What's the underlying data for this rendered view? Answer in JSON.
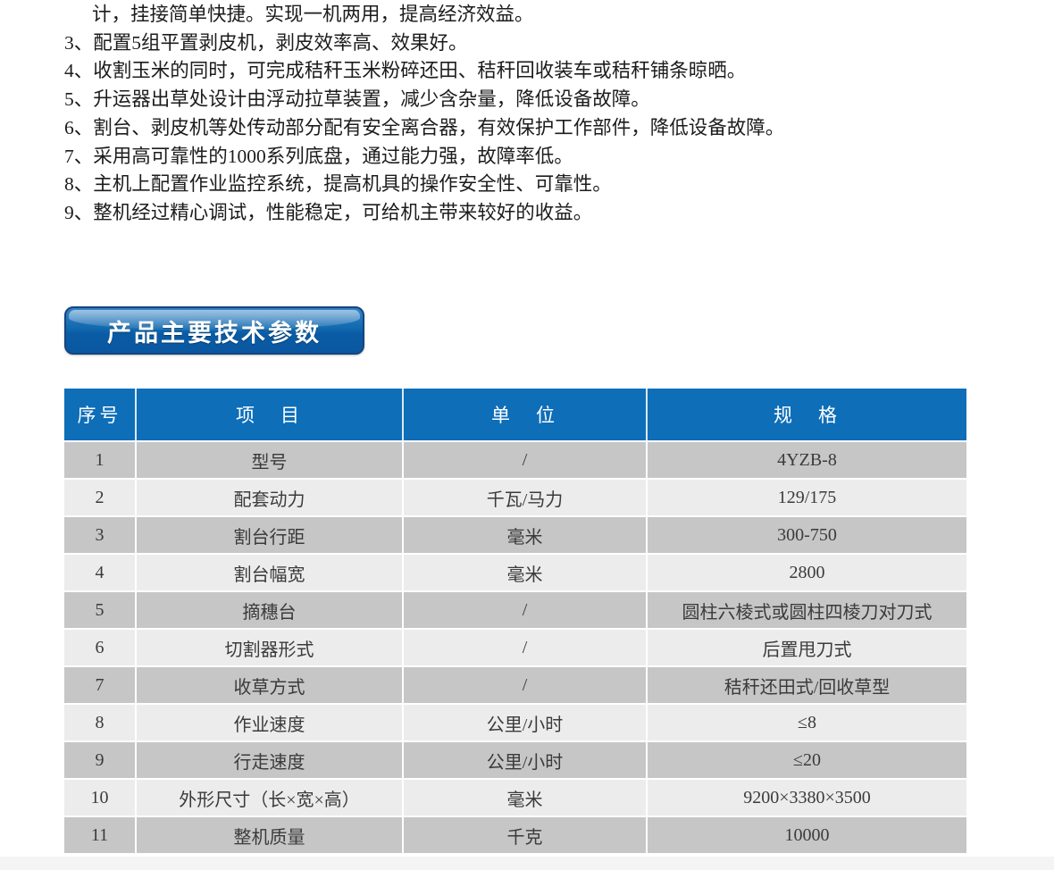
{
  "feature_list": {
    "lines": [
      {
        "text": "计，挂接简单快捷。实现一机两用，提高经济效益。"
      },
      {
        "text": "3、配置5组平置剥皮机，剥皮效率高、效果好。"
      },
      {
        "text": "4、收割玉米的同时，可完成秸秆玉米粉碎还田、秸秆回收装车或秸秆铺条晾晒。"
      },
      {
        "text": "5、升运器出草处设计由浮动拉草装置，减少含杂量，降低设备故障。"
      },
      {
        "text": "6、割台、剥皮机等处传动部分配有安全离合器，有效保护工作部件，降低设备故障。"
      },
      {
        "text": "7、采用高可靠性的1000系列底盘，通过能力强，故障率低。"
      },
      {
        "text": "8、主机上配置作业监控系统，提高机具的操作安全性、可靠性。"
      },
      {
        "text": "9、整机经过精心调试，性能稳定，可给机主带来较好的收益。"
      }
    ]
  },
  "section_banner": {
    "label": "产品主要技术参数",
    "accent_color": "#0e6eb8",
    "border_color": "#16457f"
  },
  "spec_table": {
    "header_bg": "#0e6eb8",
    "row_dark_bg": "#c6c6c6",
    "row_light_bg": "#ececec",
    "columns": [
      "序号",
      "项　目",
      "单　位",
      "规　格"
    ],
    "rows": [
      [
        "1",
        "型号",
        "/",
        "4YZB-8"
      ],
      [
        "2",
        "配套动力",
        "千瓦/马力",
        "129/175"
      ],
      [
        "3",
        "割台行距",
        "毫米",
        "300-750"
      ],
      [
        "4",
        "割台幅宽",
        "毫米",
        "2800"
      ],
      [
        "5",
        "摘穗台",
        "/",
        "圆柱六棱式或圆柱四棱刀对刀式"
      ],
      [
        "6",
        "切割器形式",
        "/",
        "后置甩刀式"
      ],
      [
        "7",
        "收草方式",
        "/",
        "秸秆还田式/回收草型"
      ],
      [
        "8",
        "作业速度",
        "公里/小时",
        "≤8"
      ],
      [
        "9",
        "行走速度",
        "公里/小时",
        "≤20"
      ],
      [
        "10",
        "外形尺寸（长×宽×高）",
        "毫米",
        "9200×3380×3500"
      ],
      [
        "11",
        "整机质量",
        "千克",
        "10000"
      ]
    ]
  }
}
